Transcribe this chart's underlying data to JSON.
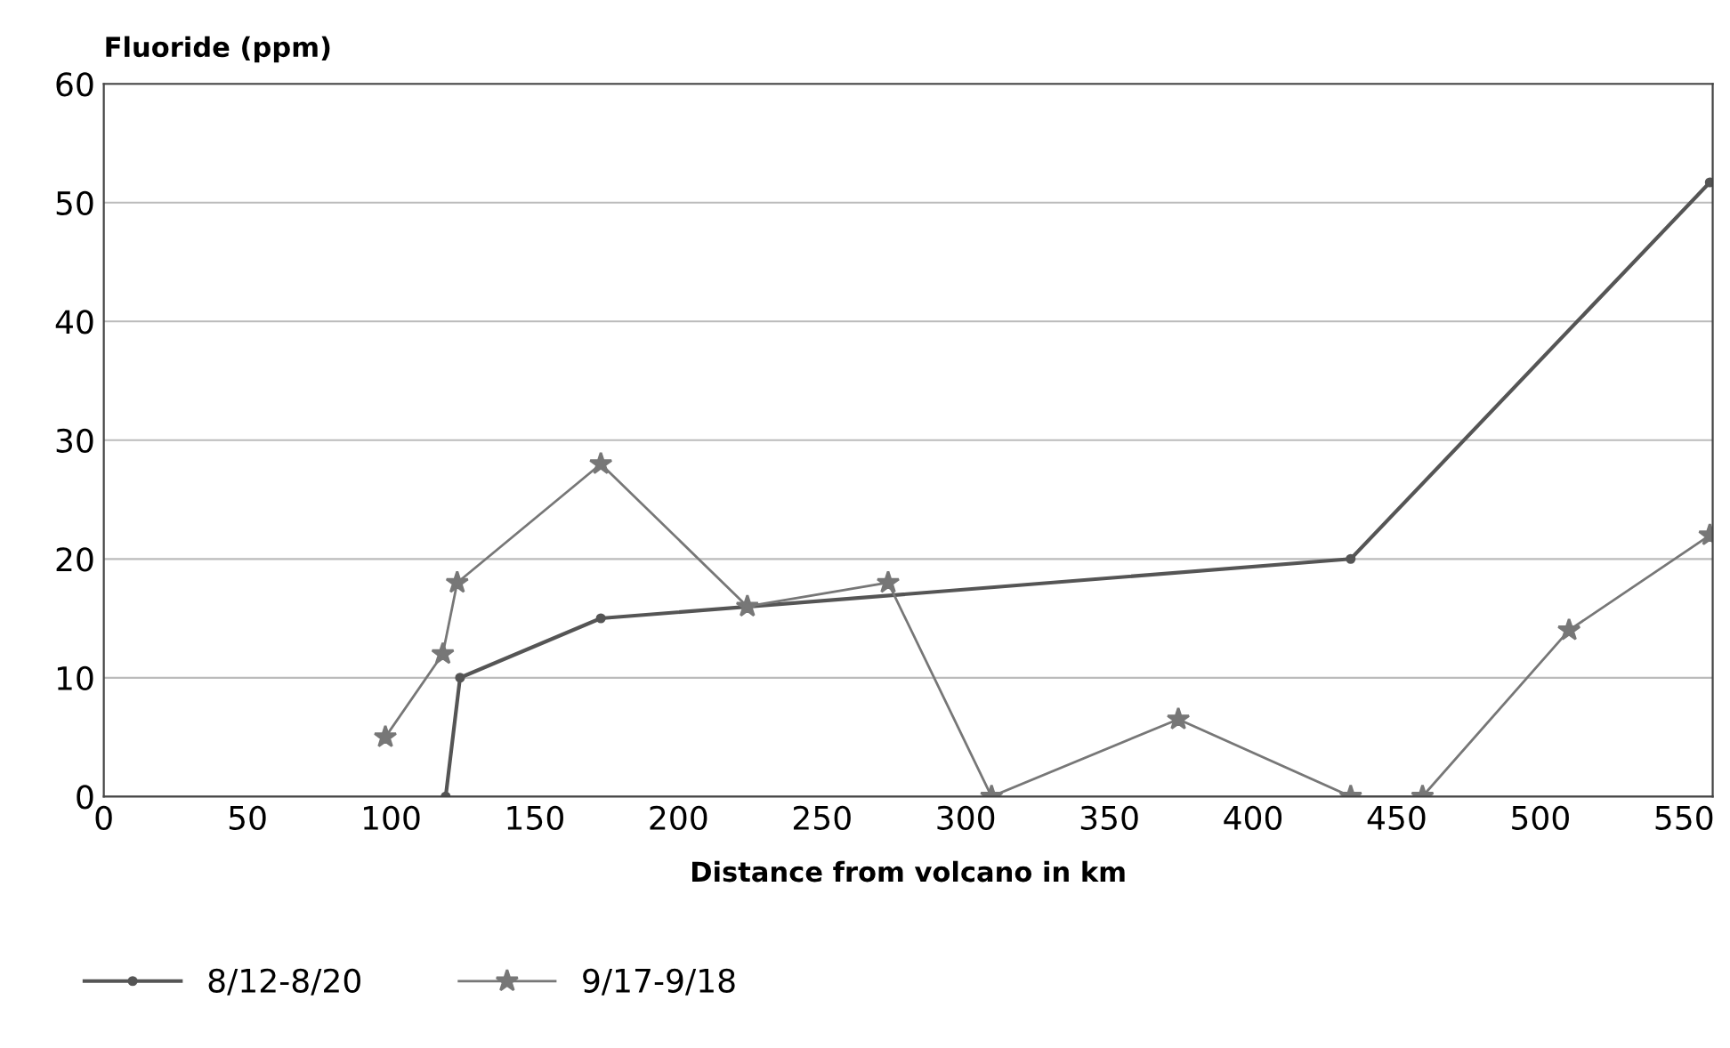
{
  "chart_data": {
    "type": "line",
    "ylabel": "Fluoride (ppm)",
    "xlabel": "Distance from volcano in km",
    "xlim": [
      0,
      560
    ],
    "xticks": [
      0,
      50,
      100,
      150,
      200,
      250,
      300,
      350,
      400,
      450,
      500,
      550
    ],
    "ylim": [
      0,
      60
    ],
    "yticks": [
      0,
      10,
      20,
      30,
      40,
      50,
      60
    ],
    "grid": "y",
    "legend": "bottom left",
    "series": [
      {
        "name": "8/12-8/20",
        "color": "#555555",
        "marker": "circle",
        "x": [
          119,
          124,
          173,
          434,
          559
        ],
        "values": [
          0,
          10,
          15,
          20,
          51.7
        ]
      },
      {
        "name": "9/17-9/18",
        "color": "#777777",
        "marker": "star",
        "x": [
          98,
          118,
          123,
          173,
          224,
          273,
          309,
          374,
          434,
          459,
          510,
          559
        ],
        "values": [
          5,
          12,
          18,
          28,
          16,
          18,
          0,
          6.5,
          0,
          0,
          14,
          22
        ]
      }
    ]
  }
}
